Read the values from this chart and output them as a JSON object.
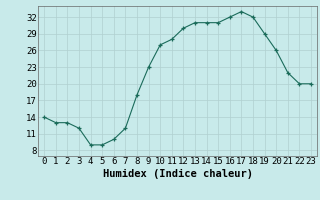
{
  "x": [
    0,
    1,
    2,
    3,
    4,
    5,
    6,
    7,
    8,
    9,
    10,
    11,
    12,
    13,
    14,
    15,
    16,
    17,
    18,
    19,
    20,
    21,
    22,
    23
  ],
  "y": [
    14,
    13,
    13,
    12,
    9,
    9,
    10,
    12,
    18,
    23,
    27,
    28,
    30,
    31,
    31,
    31,
    32,
    33,
    32,
    29,
    26,
    22,
    20,
    20
  ],
  "line_color": "#1a6b5a",
  "marker": "+",
  "marker_color": "#1a6b5a",
  "bg_color": "#c8eaea",
  "grid_major_color": "#b0d0d0",
  "grid_minor_color": "#c0e0e0",
  "xlabel": "Humidex (Indice chaleur)",
  "xlim": [
    -0.5,
    23.5
  ],
  "ylim": [
    7,
    34
  ],
  "yticks": [
    8,
    11,
    14,
    17,
    20,
    23,
    26,
    29,
    32
  ],
  "xticks": [
    0,
    1,
    2,
    3,
    4,
    5,
    6,
    7,
    8,
    9,
    10,
    11,
    12,
    13,
    14,
    15,
    16,
    17,
    18,
    19,
    20,
    21,
    22,
    23
  ],
  "tick_font_size": 6.5,
  "label_font_size": 7.5
}
